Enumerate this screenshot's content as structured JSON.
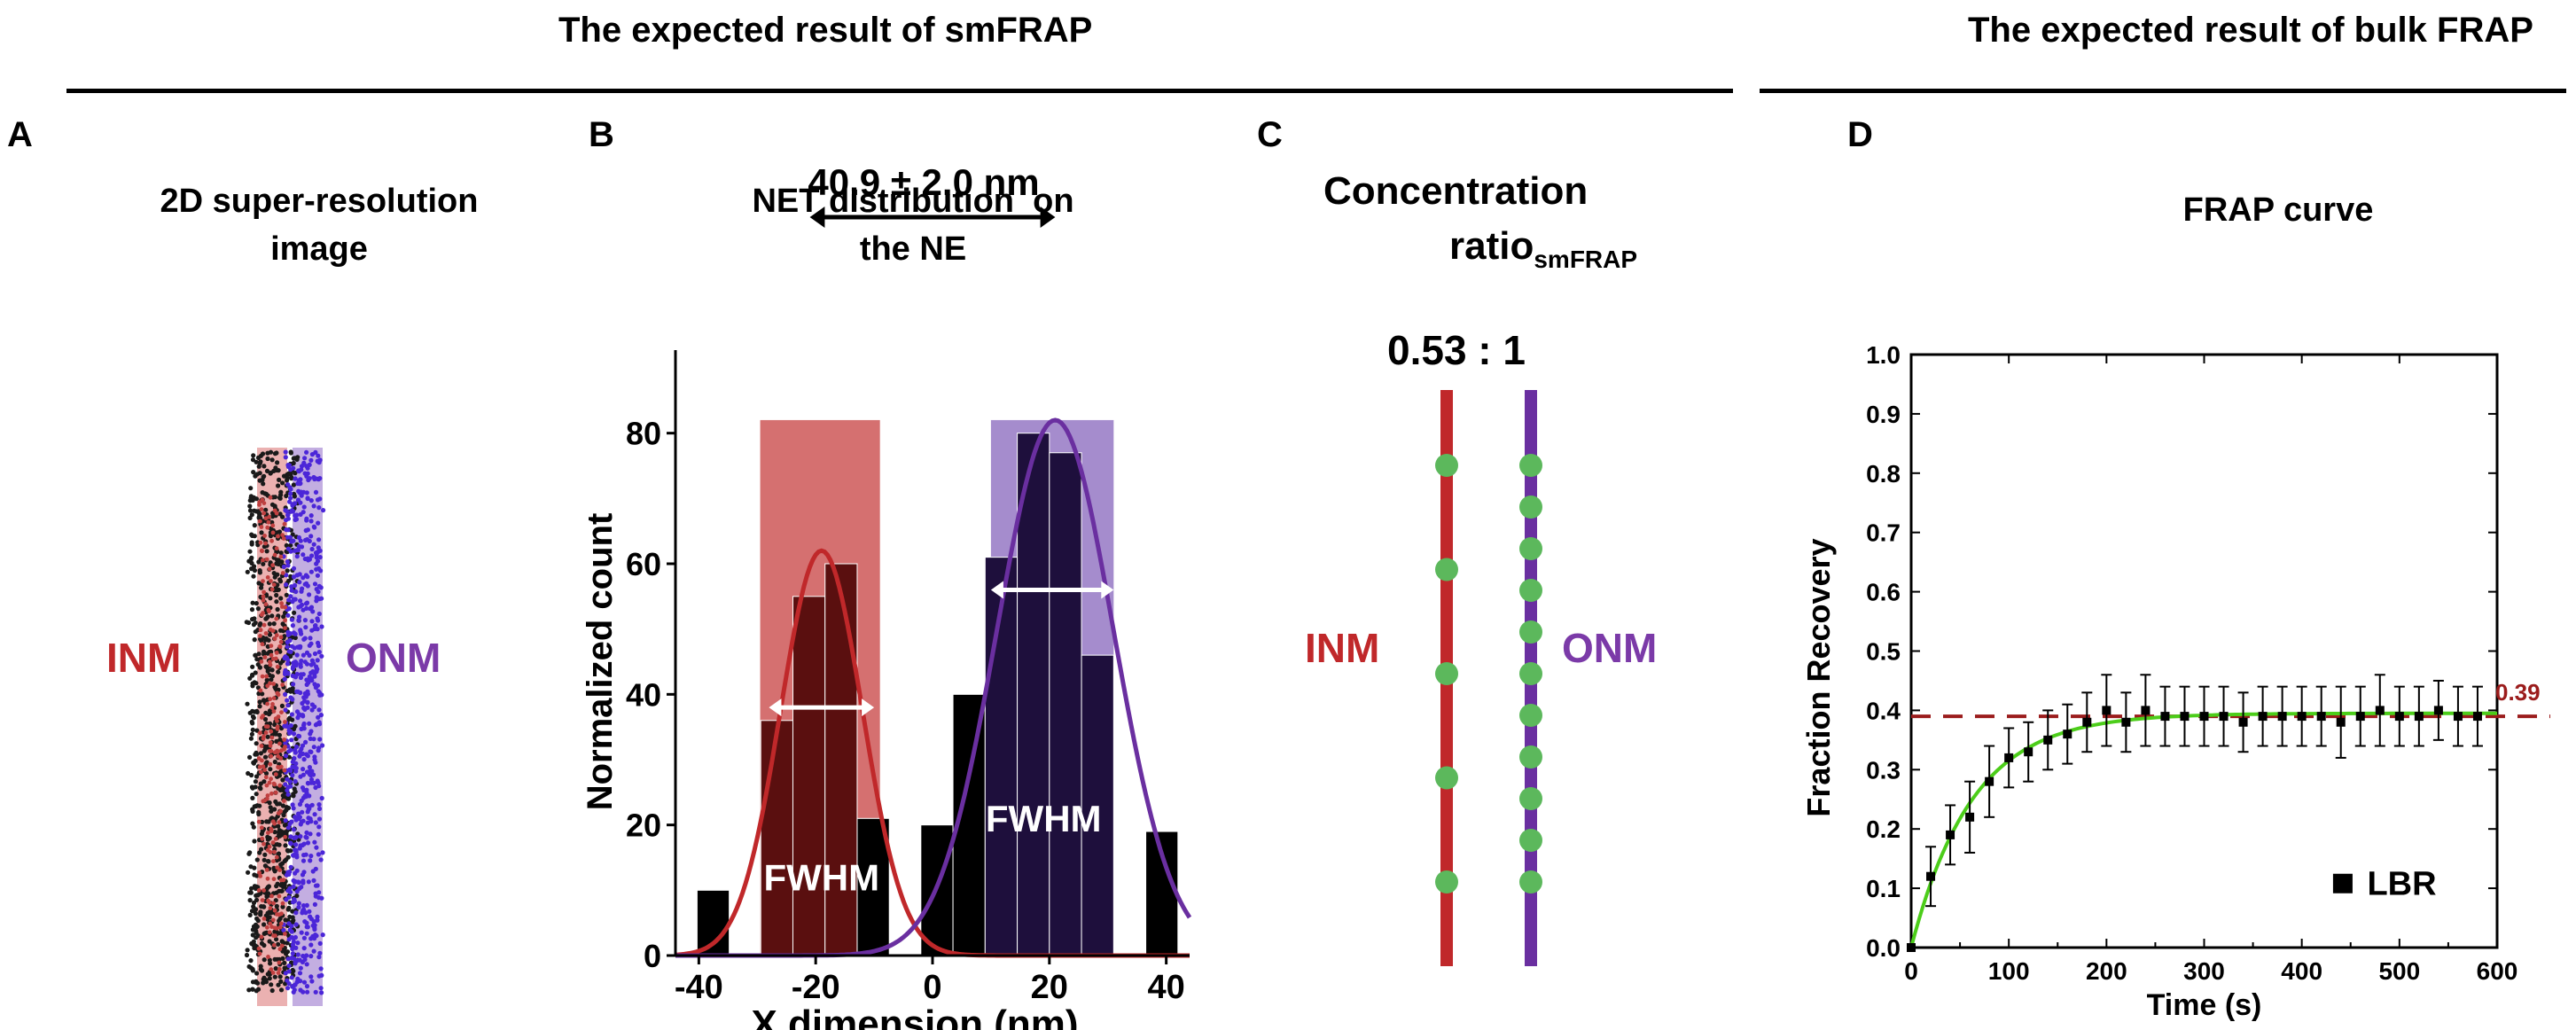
{
  "headers": {
    "smfrap": "The expected result of smFRAP",
    "bulk": "The expected result of bulk FRAP"
  },
  "panels": {
    "a": {
      "letter": "A",
      "title_line1": "2D super-resolution",
      "title_line2": "image",
      "inm_label": "INM",
      "onm_label": "ONM"
    },
    "b": {
      "letter": "B",
      "title_line1": "NET distribution  on",
      "title_line2": "the NE",
      "distance_label": "40.9 ± 2.0 nm",
      "fwhm_label": "FWHM"
    },
    "c": {
      "letter": "C",
      "title_line1": "Concentration",
      "title_line2_main": "ratio",
      "title_line2_sub": "smFRAP",
      "ratio_label": "0.53 : 1",
      "inm_label": "INM",
      "onm_label": "ONM",
      "inm_dot_count": 5,
      "onm_dot_count": 11
    },
    "d": {
      "letter": "D",
      "title": "FRAP curve"
    }
  },
  "colors": {
    "inm": "#c0282a",
    "onm": "#6a2fa0",
    "onm_label": "#7b3aa8",
    "green": "#5cb85c",
    "fit": "#4ccd1a",
    "ref": "#9b1c1c"
  },
  "chart_data": [
    {
      "type": "bar",
      "title": "NET distribution  on the NE",
      "xlabel": "X dimension (nm)",
      "ylabel": "Normalized count",
      "xlim": [
        -44,
        44
      ],
      "ylim": [
        0,
        90
      ],
      "xticks": [
        -40,
        -20,
        0,
        20,
        40
      ],
      "yticks": [
        0,
        20,
        40,
        60,
        80
      ],
      "bin_width": 5.5,
      "bins": [
        {
          "x": -40.3,
          "value": 10,
          "color": "black"
        },
        {
          "x": -29.4,
          "value": 36,
          "color": "inm"
        },
        {
          "x": -23.9,
          "value": 55,
          "color": "inm"
        },
        {
          "x": -18.4,
          "value": 60,
          "color": "inm"
        },
        {
          "x": -12.9,
          "value": 21,
          "color": "black"
        },
        {
          "x": -2.0,
          "value": 20,
          "color": "black"
        },
        {
          "x": 3.5,
          "value": 40,
          "color": "black"
        },
        {
          "x": 9.0,
          "value": 61,
          "color": "onm"
        },
        {
          "x": 14.5,
          "value": 80,
          "color": "onm"
        },
        {
          "x": 20.0,
          "value": 77,
          "color": "onm"
        },
        {
          "x": 25.5,
          "value": 46,
          "color": "onm"
        },
        {
          "x": 36.5,
          "value": 19,
          "color": "black"
        }
      ],
      "series": [
        {
          "name": "INM fit",
          "mean": -19,
          "sd": 7,
          "peak": 62,
          "color": "inm"
        },
        {
          "name": "ONM fit",
          "mean": 21,
          "sd": 10,
          "peak": 82,
          "color": "onm"
        }
      ],
      "fwhm_bands": [
        {
          "name": "INM",
          "from": -29.5,
          "to": -9,
          "height": 82
        },
        {
          "name": "ONM",
          "from": 10,
          "to": 31,
          "height": 82
        }
      ],
      "fwhm_arrows": [
        {
          "from": -28,
          "to": -10,
          "y": 38
        },
        {
          "from": 10,
          "to": 31,
          "y": 56
        }
      ]
    },
    {
      "type": "scatter",
      "title": "FRAP curve",
      "xlabel": "Time (s)",
      "ylabel": "Fraction Recovery",
      "xlim": [
        0,
        600
      ],
      "ylim": [
        0,
        1.0
      ],
      "xticks": [
        0,
        100,
        200,
        300,
        400,
        500,
        600
      ],
      "yticks": [
        0.0,
        0.1,
        0.2,
        0.3,
        0.4,
        0.5,
        0.6,
        0.7,
        0.8,
        0.9,
        1.0
      ],
      "legend": "LBR",
      "legend_placement": "bottom-right",
      "ref_line": {
        "y": 0.39,
        "label": "0.39"
      },
      "fit": {
        "plateau": 0.395,
        "rate": 0.016
      },
      "series": [
        {
          "name": "LBR",
          "x": [
            0,
            20,
            40,
            60,
            80,
            100,
            120,
            140,
            160,
            180,
            200,
            220,
            240,
            260,
            280,
            300,
            320,
            340,
            360,
            380,
            400,
            420,
            440,
            460,
            480,
            500,
            520,
            540,
            560,
            580
          ],
          "y": [
            0.0,
            0.12,
            0.19,
            0.22,
            0.28,
            0.32,
            0.33,
            0.35,
            0.36,
            0.38,
            0.4,
            0.38,
            0.4,
            0.39,
            0.39,
            0.39,
            0.39,
            0.38,
            0.39,
            0.39,
            0.39,
            0.39,
            0.38,
            0.39,
            0.4,
            0.39,
            0.39,
            0.4,
            0.39,
            0.39
          ],
          "err": [
            0.0,
            0.05,
            0.05,
            0.06,
            0.06,
            0.05,
            0.05,
            0.05,
            0.05,
            0.05,
            0.06,
            0.05,
            0.06,
            0.05,
            0.05,
            0.05,
            0.05,
            0.05,
            0.05,
            0.05,
            0.05,
            0.05,
            0.06,
            0.05,
            0.06,
            0.05,
            0.05,
            0.05,
            0.05,
            0.05
          ]
        }
      ]
    }
  ]
}
